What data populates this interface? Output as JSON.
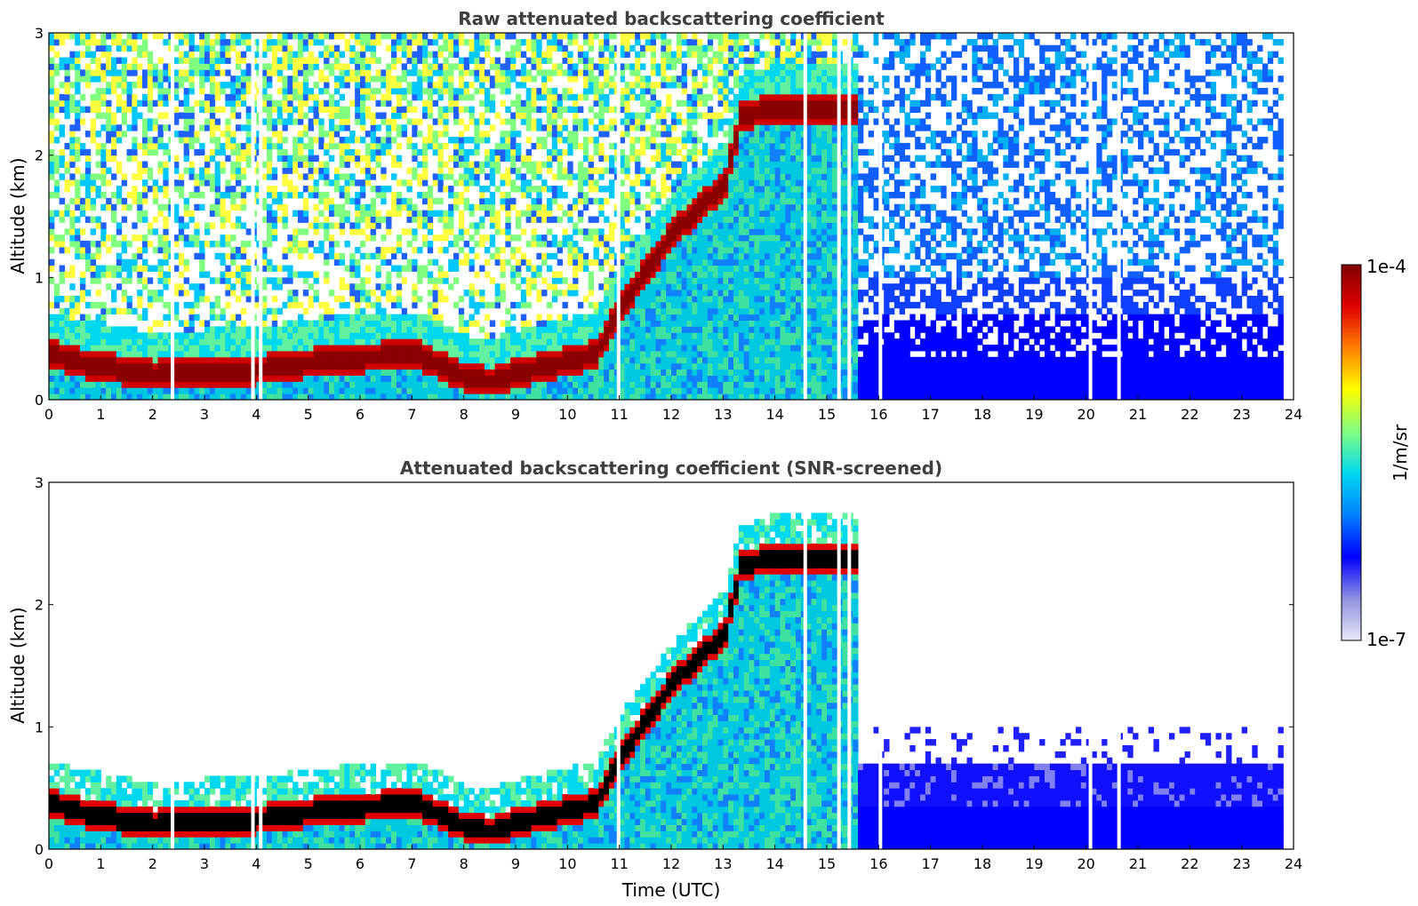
{
  "chart_data": [
    {
      "type": "heatmap",
      "title": "Raw attenuated backscattering coefficient",
      "xlabel": "",
      "ylabel": "Altitude (km)",
      "xlim": [
        0,
        24
      ],
      "ylim": [
        0,
        3
      ],
      "x_ticks": [
        "0",
        "1",
        "2",
        "3",
        "4",
        "5",
        "6",
        "7",
        "8",
        "9",
        "10",
        "11",
        "12",
        "13",
        "14",
        "15",
        "16",
        "17",
        "18",
        "19",
        "20",
        "21",
        "22",
        "23",
        "24"
      ],
      "y_ticks": [
        "0",
        "1",
        "2",
        "3"
      ],
      "screened": false,
      "layer_height_km": {
        "x": [
          0,
          0.5,
          1,
          1.5,
          2,
          3,
          4,
          5,
          6,
          7,
          8,
          8.5,
          9,
          10,
          10.5,
          11,
          11.5,
          12,
          12.5,
          13,
          13.3,
          13.8
        ],
        "y": [
          0.35,
          0.28,
          0.25,
          0.2,
          0.18,
          0.2,
          0.22,
          0.28,
          0.32,
          0.35,
          0.15,
          0.12,
          0.2,
          0.3,
          0.35,
          0.75,
          1.05,
          1.35,
          1.55,
          1.75,
          2.3,
          2.35
        ]
      },
      "noisy_after_hour": 15.5
    },
    {
      "type": "heatmap",
      "title": "Attenuated backscattering coefficient (SNR-screened)",
      "xlabel": "Time (UTC)",
      "ylabel": "Altitude (km)",
      "xlim": [
        0,
        24
      ],
      "ylim": [
        0,
        3
      ],
      "x_ticks": [
        "0",
        "1",
        "2",
        "3",
        "4",
        "5",
        "6",
        "7",
        "8",
        "9",
        "10",
        "11",
        "12",
        "13",
        "14",
        "15",
        "16",
        "17",
        "18",
        "19",
        "20",
        "21",
        "22",
        "23",
        "24"
      ],
      "y_ticks": [
        "0",
        "1",
        "2",
        "3"
      ],
      "screened": true
    }
  ],
  "colorbar": {
    "label": "1/m/sr",
    "max_label": "1e-4",
    "min_label": "1e-7",
    "scale": "log",
    "colormap": "jet",
    "colors": [
      "#e8e8f8",
      "#9090e0",
      "#0000ff",
      "#0080ff",
      "#00d8f0",
      "#80ff80",
      "#ffff00",
      "#ff8000",
      "#e00000",
      "#800000"
    ]
  }
}
